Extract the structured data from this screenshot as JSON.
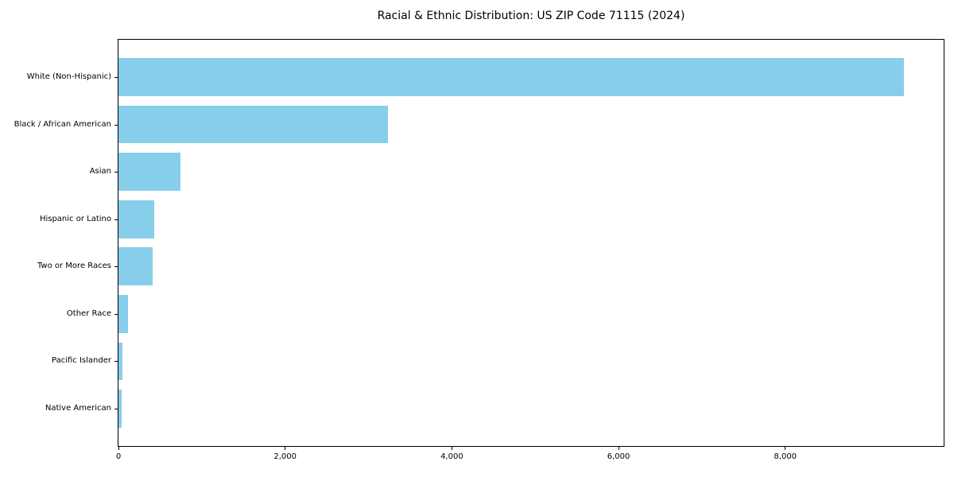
{
  "chart_data": {
    "type": "bar",
    "orientation": "horizontal",
    "title": "Racial & Ethnic Distribution: US ZIP Code 71115 (2024)",
    "categories": [
      "White (Non-Hispanic)",
      "Black / African American",
      "Asian",
      "Hispanic or Latino",
      "Two or More Races",
      "Other Race",
      "Pacific Islander",
      "Native American"
    ],
    "values": [
      9420,
      3230,
      740,
      432,
      413,
      117,
      45,
      34
    ],
    "xlabel": "",
    "ylabel": "",
    "xlim": [
      0,
      9900
    ],
    "xticks": [
      0,
      2000,
      4000,
      6000,
      8000
    ],
    "xtick_labels": [
      "0",
      "2,000",
      "4,000",
      "6,000",
      "8,000"
    ],
    "bar_color": "#87CEEB",
    "axis_color": "#000000",
    "text_color": "#000000",
    "background": "#FFFFFF",
    "grid": false,
    "legend": false,
    "bar_height_frac": 0.8,
    "axis_margin_frac": 0.05
  }
}
